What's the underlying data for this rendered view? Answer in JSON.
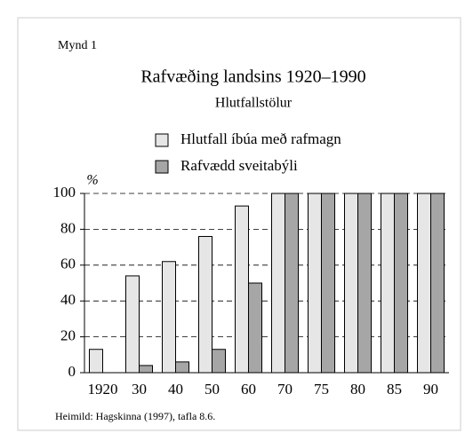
{
  "chart_data": {
    "type": "bar",
    "figure_label": "Mynd 1",
    "title": "Rafvæðing landsins 1920–1990",
    "subtitle": "Hlutfallstölur",
    "y_label": "%",
    "source": "Heimild: Hagskinna (1997), tafla 8.6.",
    "categories": [
      "1920",
      "30",
      "40",
      "50",
      "60",
      "70",
      "75",
      "80",
      "85",
      "90"
    ],
    "series": [
      {
        "name": "Hlutfall íbúa með rafmagn",
        "color": "#e6e6e6",
        "values": [
          13,
          54,
          62,
          76,
          93,
          100,
          100,
          100,
          100,
          100
        ]
      },
      {
        "name": "Rafvædd sveitabýli",
        "color": "#a6a6a6",
        "values": [
          null,
          4,
          6,
          13,
          50,
          100,
          100,
          100,
          100,
          100
        ]
      }
    ],
    "ylim": [
      0,
      100
    ],
    "yticks": [
      0,
      20,
      40,
      60,
      80,
      100
    ],
    "grid": true
  }
}
